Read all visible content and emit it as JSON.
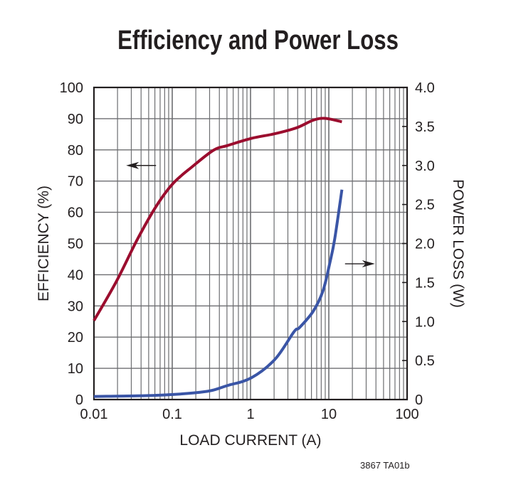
{
  "chart_data": {
    "type": "line",
    "title": "Efficiency and Power Loss",
    "xlabel": "LOAD CURRENT (A)",
    "ylabel": "EFFICIENCY (%)",
    "y2label": "POWER LOSS (W)",
    "xscale": "log",
    "xlim": [
      0.01,
      100
    ],
    "ylim": [
      0,
      100
    ],
    "y2lim": [
      0,
      4
    ],
    "x_ticks": [
      "0.01",
      "0.1",
      "1",
      "10",
      "100"
    ],
    "x_tick_values": [
      0.01,
      0.1,
      1,
      10,
      100
    ],
    "y_ticks": [
      "0",
      "10",
      "20",
      "30",
      "40",
      "50",
      "60",
      "70",
      "80",
      "90",
      "100"
    ],
    "y2_ticks": [
      "0",
      "0.5",
      "1.0",
      "1.5",
      "2.0",
      "2.5",
      "3.0",
      "3.5",
      "4.0"
    ],
    "grid": true,
    "series": [
      {
        "axis": "left",
        "color": "#9b0d2e",
        "x": [
          0.01,
          0.0193,
          0.036,
          0.063,
          0.103,
          0.18,
          0.337,
          0.51,
          1.03,
          2.07,
          3.9,
          6.3,
          9.0,
          14.7
        ],
        "y": [
          25.3,
          37.8,
          51.4,
          62.1,
          69.3,
          74.6,
          79.9,
          81.4,
          83.7,
          85.2,
          87.1,
          89.5,
          90.1,
          89.0
        ]
      },
      {
        "axis": "right",
        "color": "#3a55a6",
        "x": [
          0.01,
          0.063,
          0.256,
          0.51,
          1.03,
          2.07,
          3.6,
          4.2,
          6.3,
          8.4,
          10.3,
          11.9,
          14.7
        ],
        "y": [
          0.04,
          0.055,
          0.1,
          0.18,
          0.28,
          0.52,
          0.87,
          0.92,
          1.13,
          1.39,
          1.75,
          2.06,
          2.69
        ]
      }
    ],
    "annotations": [
      {
        "type": "arrow",
        "direction": "left",
        "points_to": "left axis",
        "x": 0.04,
        "y": 75
      },
      {
        "type": "arrow",
        "direction": "right",
        "points_to": "right axis",
        "x": 25,
        "y": 43.5
      }
    ]
  },
  "footer": "3867 TA01b"
}
